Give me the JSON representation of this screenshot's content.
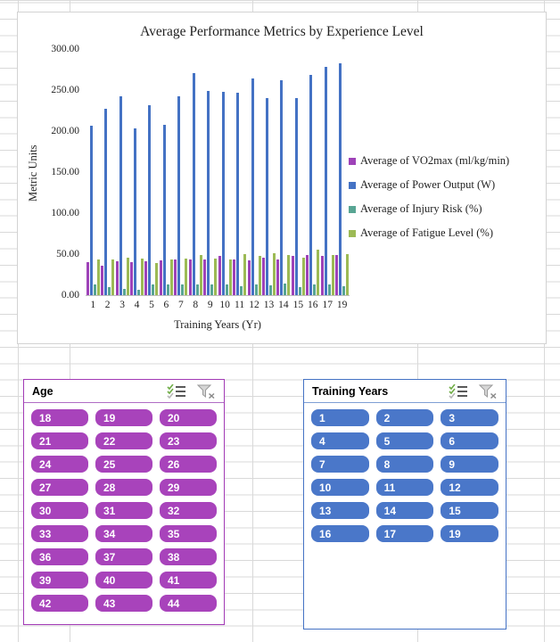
{
  "colors": {
    "grid_line": "#d9d9d9",
    "age_accent": "#a23ab5",
    "age_underline": "#b06cc4",
    "age_button": "#a843bb",
    "ty_accent": "#4472c4",
    "ty_underline": "#7e9fd4",
    "ty_button": "#4a77c9"
  },
  "chart_data": {
    "type": "bar",
    "title": "Average Performance Metrics by Experience Level",
    "xlabel": "Training Years (Yr)",
    "ylabel": "Metric Units",
    "ylim": [
      0,
      300
    ],
    "y_ticks": [
      "300.00",
      "250.00",
      "200.00",
      "150.00",
      "100.00",
      "50.00",
      "0.00"
    ],
    "legend_position": "right",
    "grid": false,
    "categories": [
      "1",
      "2",
      "3",
      "4",
      "5",
      "6",
      "7",
      "8",
      "9",
      "10",
      "11",
      "12",
      "13",
      "14",
      "15",
      "16",
      "17",
      "19"
    ],
    "series": [
      {
        "name": "Average of VO2max (ml/kg/min)",
        "color": "#9e42b8",
        "values": [
          40,
          36,
          41,
          40,
          41,
          42,
          43,
          44,
          43,
          48,
          43,
          42,
          46,
          44,
          48,
          49,
          48,
          49
        ]
      },
      {
        "name": "Average of Power Output (W)",
        "color": "#4472c4",
        "values": [
          207,
          227,
          242,
          203,
          232,
          208,
          242,
          271,
          249,
          248,
          247,
          264,
          240,
          262,
          240,
          268,
          278,
          283
        ]
      },
      {
        "name": "Average of Injury Risk (%)",
        "color": "#58a593",
        "values": [
          13,
          10,
          8,
          7,
          13,
          13,
          13,
          13,
          13,
          13,
          11,
          13,
          12,
          14,
          10,
          13,
          13,
          11
        ]
      },
      {
        "name": "Average of Fatigue Level (%)",
        "color": "#9cba55",
        "values": [
          43,
          44,
          46,
          45,
          39,
          44,
          45,
          49,
          45,
          44,
          50,
          48,
          51,
          49,
          46,
          55,
          49,
          50
        ]
      }
    ]
  },
  "slicers": {
    "age": {
      "title": "Age",
      "items": [
        "18",
        "19",
        "20",
        "21",
        "22",
        "23",
        "24",
        "25",
        "26",
        "27",
        "28",
        "29",
        "30",
        "31",
        "32",
        "33",
        "34",
        "35",
        "36",
        "37",
        "38",
        "39",
        "40",
        "41",
        "42",
        "43",
        "44"
      ],
      "icons": [
        "multiselect-icon",
        "clear-filter-icon"
      ]
    },
    "training_years": {
      "title": "Training Years",
      "items": [
        "1",
        "2",
        "3",
        "4",
        "5",
        "6",
        "7",
        "8",
        "9",
        "10",
        "11",
        "12",
        "13",
        "14",
        "15",
        "16",
        "17",
        "19"
      ],
      "icons": [
        "multiselect-icon",
        "clear-filter-icon"
      ]
    }
  }
}
